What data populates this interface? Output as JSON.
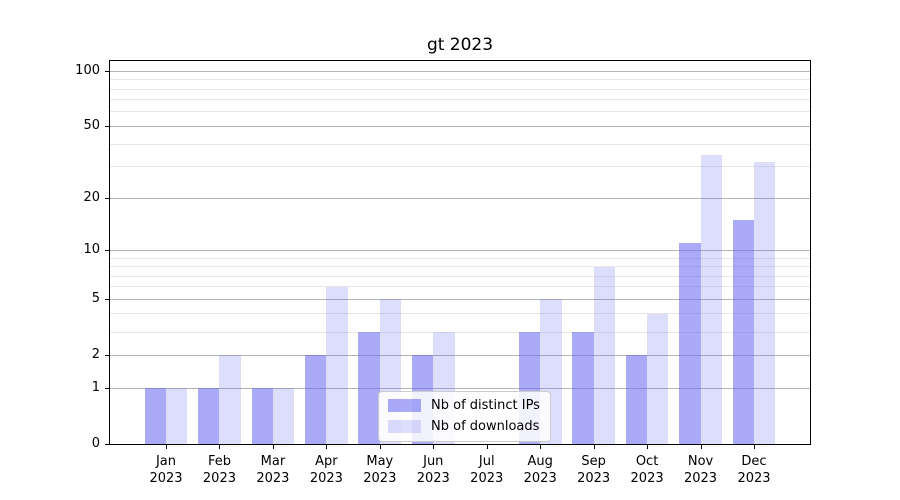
{
  "title": "gt 2023",
  "chart_data": {
    "type": "bar",
    "title": "gt 2023",
    "xlabel": "",
    "ylabel": "",
    "categories": [
      "Jan 2023",
      "Feb 2023",
      "Mar 2023",
      "Apr 2023",
      "May 2023",
      "Jun 2023",
      "Jul 2023",
      "Aug 2023",
      "Sep 2023",
      "Oct 2023",
      "Nov 2023",
      "Dec 2023"
    ],
    "series": [
      {
        "name": "Nb of distinct IPs",
        "fill": "rgba(100,100,240,0.55)",
        "blended_hex": "#aaaaf7",
        "values": [
          1,
          1,
          1,
          2,
          3,
          2,
          0,
          3,
          3,
          2,
          11,
          15
        ]
      },
      {
        "name": "Nb of downloads",
        "fill": "rgba(100,100,240,0.22)",
        "blended_hex": "#ddddfc",
        "values": [
          1,
          2,
          1,
          6,
          5,
          3,
          0,
          5,
          8,
          4,
          35,
          32
        ]
      }
    ],
    "yscale": "log1p",
    "ylim": [
      0,
      114
    ],
    "major_yticks": [
      0,
      1,
      2,
      5,
      10,
      20,
      50,
      100
    ],
    "minor_yticks": [
      3,
      4,
      6,
      7,
      8,
      9,
      30,
      40,
      60,
      70,
      80,
      90
    ],
    "grid": true,
    "legend": {
      "position": "lower center",
      "labels": [
        "Nb of distinct IPs",
        "Nb of downloads"
      ]
    }
  },
  "colors": {
    "axis": "#000000",
    "major_grid": "#b4b4b4",
    "minor_grid": "#e7e7e7",
    "legend_border": "#cccccc",
    "legend_background": "rgba(255,255,255,0.85)"
  }
}
